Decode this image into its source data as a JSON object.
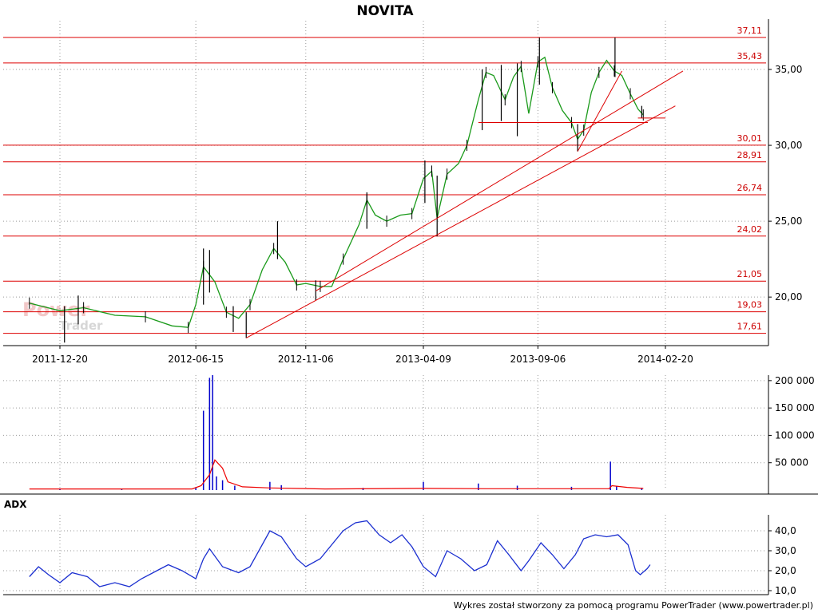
{
  "app": {
    "title": "NOVITA",
    "watermark_top": "Power",
    "watermark_bottom": "Trader"
  },
  "footer": "Wykres został stworzony za pomocą programu PowerTrader (www.powertrader.pl)",
  "colors": {
    "fib": "#dd0000",
    "candle": "#000000",
    "ma": "#1a9a1a",
    "volume": "#0000cc",
    "volume_ma": "#ee0000",
    "adx": "#1b2fd0",
    "grid": "#9a9a9a"
  },
  "chart_data": [
    {
      "type": "candlestick",
      "title": "NOVITA",
      "x_ticks": [
        "2011-12-20",
        "2012-06-15",
        "2012-11-06",
        "2013-04-09",
        "2013-09-06",
        "2014-02-20"
      ],
      "y_ticks": [
        "20,00",
        "25,00",
        "30,00",
        "35,00"
      ],
      "ylim": [
        16.8,
        38.0
      ],
      "grid": true,
      "fib_levels": [
        {
          "value": 37.11,
          "label": "37,11"
        },
        {
          "value": 35.43,
          "label": "35,43"
        },
        {
          "value": 30.01,
          "label": "30,01"
        },
        {
          "value": 28.91,
          "label": "28,91"
        },
        {
          "value": 26.74,
          "label": "26,74"
        },
        {
          "value": 24.02,
          "label": "24,02"
        },
        {
          "value": 21.05,
          "label": "21,05"
        },
        {
          "value": 19.03,
          "label": "19,03"
        },
        {
          "value": 17.61,
          "label": "17,61"
        }
      ],
      "close_path": [
        {
          "d": "2011-11-10",
          "y": 19.6
        },
        {
          "d": "2011-12-20",
          "y": 19.1
        },
        {
          "d": "2012-01-20",
          "y": 19.3
        },
        {
          "d": "2012-03-01",
          "y": 18.8
        },
        {
          "d": "2012-04-10",
          "y": 18.7
        },
        {
          "d": "2012-05-15",
          "y": 18.1
        },
        {
          "d": "2012-06-05",
          "y": 18.0
        },
        {
          "d": "2012-06-15",
          "y": 19.5
        },
        {
          "d": "2012-06-25",
          "y": 22.0
        },
        {
          "d": "2012-07-10",
          "y": 21.0
        },
        {
          "d": "2012-07-25",
          "y": 19.0
        },
        {
          "d": "2012-08-10",
          "y": 18.6
        },
        {
          "d": "2012-08-25",
          "y": 19.5
        },
        {
          "d": "2012-09-10",
          "y": 21.8
        },
        {
          "d": "2012-09-25",
          "y": 23.2
        },
        {
          "d": "2012-10-10",
          "y": 22.3
        },
        {
          "d": "2012-10-25",
          "y": 20.8
        },
        {
          "d": "2012-11-06",
          "y": 20.9
        },
        {
          "d": "2012-11-25",
          "y": 20.7
        },
        {
          "d": "2012-12-10",
          "y": 20.7
        },
        {
          "d": "2012-12-25",
          "y": 22.5
        },
        {
          "d": "2013-01-15",
          "y": 24.8
        },
        {
          "d": "2013-01-25",
          "y": 26.4
        },
        {
          "d": "2013-02-05",
          "y": 25.4
        },
        {
          "d": "2013-02-20",
          "y": 25.0
        },
        {
          "d": "2013-03-10",
          "y": 25.4
        },
        {
          "d": "2013-03-25",
          "y": 25.5
        },
        {
          "d": "2013-04-09",
          "y": 27.8
        },
        {
          "d": "2013-04-20",
          "y": 28.3
        },
        {
          "d": "2013-04-27",
          "y": 25.2
        },
        {
          "d": "2013-05-10",
          "y": 28.1
        },
        {
          "d": "2013-05-25",
          "y": 28.8
        },
        {
          "d": "2013-06-05",
          "y": 30.0
        },
        {
          "d": "2013-06-20",
          "y": 33.0
        },
        {
          "d": "2013-06-30",
          "y": 34.8
        },
        {
          "d": "2013-07-10",
          "y": 34.6
        },
        {
          "d": "2013-07-25",
          "y": 33.0
        },
        {
          "d": "2013-08-05",
          "y": 34.5
        },
        {
          "d": "2013-08-15",
          "y": 35.2
        },
        {
          "d": "2013-08-25",
          "y": 32.1
        },
        {
          "d": "2013-09-06",
          "y": 35.5
        },
        {
          "d": "2013-09-15",
          "y": 35.8
        },
        {
          "d": "2013-09-25",
          "y": 33.8
        },
        {
          "d": "2013-10-08",
          "y": 32.3
        },
        {
          "d": "2013-10-20",
          "y": 31.5
        },
        {
          "d": "2013-10-28",
          "y": 30.4
        },
        {
          "d": "2013-11-05",
          "y": 31.0
        },
        {
          "d": "2013-11-15",
          "y": 33.5
        },
        {
          "d": "2013-11-25",
          "y": 34.8
        },
        {
          "d": "2013-12-05",
          "y": 35.6
        },
        {
          "d": "2013-12-15",
          "y": 34.9
        },
        {
          "d": "2013-12-25",
          "y": 34.6
        },
        {
          "d": "2014-01-05",
          "y": 33.4
        },
        {
          "d": "2014-01-15",
          "y": 32.4
        },
        {
          "d": "2014-01-22",
          "y": 32.0
        }
      ],
      "candles": [
        {
          "d": "2011-12-26",
          "low": 17.0,
          "high": 19.4
        },
        {
          "d": "2012-01-13",
          "low": 18.2,
          "high": 20.1
        },
        {
          "d": "2012-06-25",
          "low": 19.5,
          "high": 23.2
        },
        {
          "d": "2012-07-03",
          "low": 20.3,
          "high": 23.1
        },
        {
          "d": "2012-08-03",
          "low": 17.7,
          "high": 19.4
        },
        {
          "d": "2012-08-20",
          "low": 17.3,
          "high": 19.0
        },
        {
          "d": "2012-09-30",
          "low": 22.5,
          "high": 25.0
        },
        {
          "d": "2012-11-19",
          "low": 19.8,
          "high": 21.1
        },
        {
          "d": "2013-01-25",
          "low": 24.5,
          "high": 26.9
        },
        {
          "d": "2013-04-11",
          "low": 26.2,
          "high": 29.0
        },
        {
          "d": "2013-04-27",
          "low": 24.0,
          "high": 28.0
        },
        {
          "d": "2013-06-25",
          "low": 31.0,
          "high": 35.0
        },
        {
          "d": "2013-07-20",
          "low": 31.6,
          "high": 35.3
        },
        {
          "d": "2013-08-10",
          "low": 30.6,
          "high": 35.4
        },
        {
          "d": "2013-09-08",
          "low": 34.0,
          "high": 37.1
        },
        {
          "d": "2013-10-28",
          "low": 29.6,
          "high": 31.4
        },
        {
          "d": "2013-12-16",
          "low": 34.5,
          "high": 37.1
        },
        {
          "d": "2014-01-20",
          "low": 31.8,
          "high": 32.6
        }
      ],
      "trendlines": [
        {
          "from": {
            "d": "2012-08-20",
            "y": 17.3
          },
          "to": {
            "d": "2014-03-05",
            "y": 32.6
          }
        },
        {
          "from": {
            "d": "2012-11-19",
            "y": 20.4
          },
          "to": {
            "d": "2014-03-15",
            "y": 34.9
          }
        },
        {
          "from": {
            "d": "2013-10-28",
            "y": 29.6
          },
          "to": {
            "d": "2013-12-25",
            "y": 34.9
          }
        },
        {
          "from": {
            "d": "2013-06-20",
            "y": 31.5
          },
          "to": {
            "d": "2014-01-28",
            "y": 31.5
          }
        },
        {
          "from": {
            "d": "2014-01-15",
            "y": 31.8
          },
          "to": {
            "d": "2014-02-20",
            "y": 31.8
          }
        }
      ]
    },
    {
      "type": "bar",
      "title": "",
      "y_ticks": [
        "50 000",
        "100 000",
        "150 000",
        "200 000"
      ],
      "ylim": [
        0,
        210000
      ],
      "bars": [
        {
          "d": "2011-12-20",
          "y": 3000
        },
        {
          "d": "2012-03-10",
          "y": 2500
        },
        {
          "d": "2012-06-15",
          "y": 5000
        },
        {
          "d": "2012-06-25",
          "y": 145000
        },
        {
          "d": "2012-07-03",
          "y": 205000
        },
        {
          "d": "2012-07-07",
          "y": 210000
        },
        {
          "d": "2012-07-12",
          "y": 25000
        },
        {
          "d": "2012-07-20",
          "y": 18000
        },
        {
          "d": "2012-08-05",
          "y": 8000
        },
        {
          "d": "2012-09-20",
          "y": 15000
        },
        {
          "d": "2012-10-05",
          "y": 9000
        },
        {
          "d": "2013-01-20",
          "y": 4000
        },
        {
          "d": "2013-04-09",
          "y": 15000
        },
        {
          "d": "2013-06-20",
          "y": 12000
        },
        {
          "d": "2013-08-10",
          "y": 8000
        },
        {
          "d": "2013-10-20",
          "y": 6000
        },
        {
          "d": "2013-12-10",
          "y": 52000
        },
        {
          "d": "2013-12-18",
          "y": 8000
        },
        {
          "d": "2014-01-20",
          "y": 4000
        }
      ],
      "ma_path": [
        {
          "d": "2011-11-10",
          "y": 2000
        },
        {
          "d": "2012-06-10",
          "y": 2000
        },
        {
          "d": "2012-06-22",
          "y": 8000
        },
        {
          "d": "2012-07-03",
          "y": 28000
        },
        {
          "d": "2012-07-10",
          "y": 55000
        },
        {
          "d": "2012-07-20",
          "y": 40000
        },
        {
          "d": "2012-07-27",
          "y": 15000
        },
        {
          "d": "2012-08-15",
          "y": 6000
        },
        {
          "d": "2012-09-20",
          "y": 4000
        },
        {
          "d": "2012-12-01",
          "y": 2000
        },
        {
          "d": "2013-04-09",
          "y": 3000
        },
        {
          "d": "2013-07-01",
          "y": 2500
        },
        {
          "d": "2013-12-08",
          "y": 2500
        },
        {
          "d": "2013-12-12",
          "y": 8000
        },
        {
          "d": "2014-01-01",
          "y": 5000
        },
        {
          "d": "2014-01-22",
          "y": 3000
        }
      ]
    },
    {
      "type": "line",
      "title": "ADX",
      "y_ticks": [
        "10,0",
        "20,0",
        "30,0",
        "40,0"
      ],
      "ylim": [
        8,
        48
      ],
      "series": [
        {
          "name": "ADX",
          "values": [
            {
              "d": "2011-11-10",
              "y": 17
            },
            {
              "d": "2011-11-22",
              "y": 22
            },
            {
              "d": "2011-12-05",
              "y": 18
            },
            {
              "d": "2011-12-20",
              "y": 14
            },
            {
              "d": "2012-01-05",
              "y": 19
            },
            {
              "d": "2012-01-25",
              "y": 17
            },
            {
              "d": "2012-02-10",
              "y": 12
            },
            {
              "d": "2012-03-01",
              "y": 14
            },
            {
              "d": "2012-03-20",
              "y": 12
            },
            {
              "d": "2012-04-05",
              "y": 16
            },
            {
              "d": "2012-04-25",
              "y": 20
            },
            {
              "d": "2012-05-10",
              "y": 23
            },
            {
              "d": "2012-05-28",
              "y": 20
            },
            {
              "d": "2012-06-15",
              "y": 16
            },
            {
              "d": "2012-06-25",
              "y": 26
            },
            {
              "d": "2012-07-03",
              "y": 31
            },
            {
              "d": "2012-07-20",
              "y": 22
            },
            {
              "d": "2012-08-10",
              "y": 19
            },
            {
              "d": "2012-08-25",
              "y": 22
            },
            {
              "d": "2012-09-20",
              "y": 40
            },
            {
              "d": "2012-10-05",
              "y": 37
            },
            {
              "d": "2012-10-25",
              "y": 26
            },
            {
              "d": "2012-11-06",
              "y": 22
            },
            {
              "d": "2012-11-25",
              "y": 26
            },
            {
              "d": "2012-12-25",
              "y": 40
            },
            {
              "d": "2013-01-10",
              "y": 44
            },
            {
              "d": "2013-01-25",
              "y": 45
            },
            {
              "d": "2013-02-10",
              "y": 38
            },
            {
              "d": "2013-02-25",
              "y": 34
            },
            {
              "d": "2013-03-12",
              "y": 38
            },
            {
              "d": "2013-03-25",
              "y": 32
            },
            {
              "d": "2013-04-09",
              "y": 22
            },
            {
              "d": "2013-04-25",
              "y": 17
            },
            {
              "d": "2013-05-10",
              "y": 30
            },
            {
              "d": "2013-05-28",
              "y": 26
            },
            {
              "d": "2013-06-15",
              "y": 20
            },
            {
              "d": "2013-07-01",
              "y": 23
            },
            {
              "d": "2013-07-15",
              "y": 35
            },
            {
              "d": "2013-07-30",
              "y": 28
            },
            {
              "d": "2013-08-15",
              "y": 20
            },
            {
              "d": "2013-08-25",
              "y": 25
            },
            {
              "d": "2013-09-10",
              "y": 34
            },
            {
              "d": "2013-09-25",
              "y": 28
            },
            {
              "d": "2013-10-10",
              "y": 21
            },
            {
              "d": "2013-10-25",
              "y": 28
            },
            {
              "d": "2013-11-05",
              "y": 36
            },
            {
              "d": "2013-11-20",
              "y": 38
            },
            {
              "d": "2013-12-05",
              "y": 37
            },
            {
              "d": "2013-12-20",
              "y": 38
            },
            {
              "d": "2014-01-02",
              "y": 33
            },
            {
              "d": "2014-01-12",
              "y": 20
            },
            {
              "d": "2014-01-18",
              "y": 18
            },
            {
              "d": "2014-01-27",
              "y": 21
            },
            {
              "d": "2014-01-31",
              "y": 23
            }
          ]
        }
      ]
    }
  ]
}
